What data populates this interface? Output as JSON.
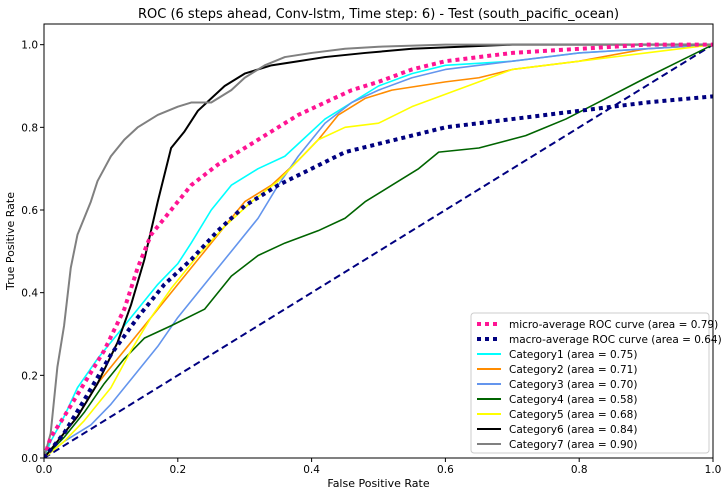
{
  "chart_data": {
    "type": "line",
    "title": "ROC (6 steps ahead, Conv-lstm, Time step: 6) - Test (south_pacific_ocean)",
    "xlabel": "False Positive Rate",
    "ylabel": "True Positive Rate",
    "xlim": [
      0,
      1
    ],
    "ylim": [
      0,
      1.05
    ],
    "x_ticks": [
      "0.0",
      "0.2",
      "0.4",
      "0.6",
      "0.8",
      "1.0"
    ],
    "y_ticks": [
      "0.0",
      "0.2",
      "0.4",
      "0.6",
      "0.8",
      "1.0"
    ],
    "grid": false,
    "legend_position": "lower-right",
    "series": [
      {
        "name": "micro-average ROC curve (area = 0.79)",
        "color": "#ff1493",
        "style": "dotted",
        "width": 4,
        "points": [
          [
            0,
            0
          ],
          [
            0.01,
            0.05
          ],
          [
            0.03,
            0.1
          ],
          [
            0.06,
            0.18
          ],
          [
            0.09,
            0.26
          ],
          [
            0.12,
            0.36
          ],
          [
            0.14,
            0.46
          ],
          [
            0.16,
            0.54
          ],
          [
            0.19,
            0.6
          ],
          [
            0.22,
            0.66
          ],
          [
            0.26,
            0.71
          ],
          [
            0.3,
            0.75
          ],
          [
            0.34,
            0.79
          ],
          [
            0.38,
            0.83
          ],
          [
            0.42,
            0.86
          ],
          [
            0.46,
            0.89
          ],
          [
            0.5,
            0.91
          ],
          [
            0.55,
            0.94
          ],
          [
            0.6,
            0.96
          ],
          [
            0.65,
            0.97
          ],
          [
            0.7,
            0.98
          ],
          [
            0.8,
            0.99
          ],
          [
            0.9,
            1.0
          ],
          [
            1.0,
            1.0
          ]
        ]
      },
      {
        "name": "macro-average ROC curve (area = 0.64)",
        "color": "#000080",
        "style": "dotted",
        "width": 4,
        "points": [
          [
            0,
            0
          ],
          [
            0.03,
            0.06
          ],
          [
            0.06,
            0.14
          ],
          [
            0.1,
            0.25
          ],
          [
            0.14,
            0.34
          ],
          [
            0.18,
            0.42
          ],
          [
            0.22,
            0.48
          ],
          [
            0.26,
            0.55
          ],
          [
            0.3,
            0.61
          ],
          [
            0.35,
            0.66
          ],
          [
            0.4,
            0.7
          ],
          [
            0.45,
            0.74
          ],
          [
            0.5,
            0.76
          ],
          [
            0.55,
            0.78
          ],
          [
            0.6,
            0.8
          ],
          [
            0.65,
            0.81
          ],
          [
            0.7,
            0.82
          ],
          [
            0.8,
            0.84
          ],
          [
            0.9,
            0.86
          ],
          [
            1.0,
            0.875
          ]
        ]
      },
      {
        "name": "Category1 (area = 0.75)",
        "color": "#00ffff",
        "style": "solid",
        "width": 1.6,
        "points": [
          [
            0,
            0
          ],
          [
            0.01,
            0.04
          ],
          [
            0.03,
            0.1
          ],
          [
            0.05,
            0.17
          ],
          [
            0.08,
            0.24
          ],
          [
            0.11,
            0.3
          ],
          [
            0.14,
            0.36
          ],
          [
            0.17,
            0.42
          ],
          [
            0.2,
            0.47
          ],
          [
            0.22,
            0.52
          ],
          [
            0.25,
            0.6
          ],
          [
            0.28,
            0.66
          ],
          [
            0.32,
            0.7
          ],
          [
            0.36,
            0.73
          ],
          [
            0.38,
            0.76
          ],
          [
            0.42,
            0.82
          ],
          [
            0.46,
            0.86
          ],
          [
            0.5,
            0.9
          ],
          [
            0.55,
            0.93
          ],
          [
            0.6,
            0.95
          ],
          [
            0.7,
            0.96
          ],
          [
            0.8,
            0.98
          ],
          [
            0.9,
            0.99
          ],
          [
            1.0,
            1.0
          ]
        ]
      },
      {
        "name": "Category2 (area = 0.71)",
        "color": "#ff8c00",
        "style": "solid",
        "width": 1.6,
        "points": [
          [
            0,
            0
          ],
          [
            0.02,
            0.04
          ],
          [
            0.05,
            0.1
          ],
          [
            0.08,
            0.18
          ],
          [
            0.11,
            0.24
          ],
          [
            0.14,
            0.3
          ],
          [
            0.17,
            0.36
          ],
          [
            0.2,
            0.42
          ],
          [
            0.24,
            0.5
          ],
          [
            0.27,
            0.56
          ],
          [
            0.3,
            0.62
          ],
          [
            0.34,
            0.66
          ],
          [
            0.38,
            0.72
          ],
          [
            0.41,
            0.77
          ],
          [
            0.44,
            0.83
          ],
          [
            0.48,
            0.87
          ],
          [
            0.52,
            0.89
          ],
          [
            0.56,
            0.9
          ],
          [
            0.6,
            0.91
          ],
          [
            0.65,
            0.92
          ],
          [
            0.7,
            0.94
          ],
          [
            0.8,
            0.96
          ],
          [
            0.9,
            0.99
          ],
          [
            1.0,
            1.0
          ]
        ]
      },
      {
        "name": "Category3 (area = 0.70)",
        "color": "#6495ed",
        "style": "solid",
        "width": 1.6,
        "points": [
          [
            0,
            0
          ],
          [
            0.03,
            0.04
          ],
          [
            0.07,
            0.08
          ],
          [
            0.1,
            0.13
          ],
          [
            0.13,
            0.19
          ],
          [
            0.17,
            0.27
          ],
          [
            0.2,
            0.34
          ],
          [
            0.24,
            0.42
          ],
          [
            0.28,
            0.5
          ],
          [
            0.32,
            0.58
          ],
          [
            0.35,
            0.66
          ],
          [
            0.38,
            0.73
          ],
          [
            0.42,
            0.81
          ],
          [
            0.46,
            0.86
          ],
          [
            0.5,
            0.89
          ],
          [
            0.55,
            0.92
          ],
          [
            0.6,
            0.94
          ],
          [
            0.7,
            0.96
          ],
          [
            0.8,
            0.98
          ],
          [
            0.9,
            0.99
          ],
          [
            1.0,
            1.0
          ]
        ]
      },
      {
        "name": "Category4 (area = 0.58)",
        "color": "#006400",
        "style": "solid",
        "width": 1.6,
        "points": [
          [
            0,
            0
          ],
          [
            0.03,
            0.05
          ],
          [
            0.06,
            0.11
          ],
          [
            0.09,
            0.18
          ],
          [
            0.12,
            0.24
          ],
          [
            0.15,
            0.29
          ],
          [
            0.19,
            0.32
          ],
          [
            0.24,
            0.36
          ],
          [
            0.28,
            0.44
          ],
          [
            0.32,
            0.49
          ],
          [
            0.36,
            0.52
          ],
          [
            0.41,
            0.55
          ],
          [
            0.45,
            0.58
          ],
          [
            0.48,
            0.62
          ],
          [
            0.52,
            0.66
          ],
          [
            0.56,
            0.7
          ],
          [
            0.59,
            0.74
          ],
          [
            0.65,
            0.75
          ],
          [
            0.72,
            0.78
          ],
          [
            0.78,
            0.82
          ],
          [
            0.84,
            0.87
          ],
          [
            0.9,
            0.92
          ],
          [
            0.95,
            0.96
          ],
          [
            1.0,
            1.0
          ]
        ]
      },
      {
        "name": "Category5 (area = 0.68)",
        "color": "#ffff00",
        "style": "solid",
        "width": 1.6,
        "points": [
          [
            0,
            0
          ],
          [
            0.03,
            0.04
          ],
          [
            0.06,
            0.09
          ],
          [
            0.1,
            0.17
          ],
          [
            0.13,
            0.26
          ],
          [
            0.16,
            0.34
          ],
          [
            0.19,
            0.41
          ],
          [
            0.23,
            0.49
          ],
          [
            0.27,
            0.56
          ],
          [
            0.31,
            0.62
          ],
          [
            0.35,
            0.67
          ],
          [
            0.38,
            0.72
          ],
          [
            0.41,
            0.77
          ],
          [
            0.45,
            0.8
          ],
          [
            0.5,
            0.81
          ],
          [
            0.55,
            0.85
          ],
          [
            0.6,
            0.88
          ],
          [
            0.65,
            0.91
          ],
          [
            0.7,
            0.94
          ],
          [
            0.8,
            0.96
          ],
          [
            0.9,
            0.98
          ],
          [
            1.0,
            1.0
          ]
        ]
      },
      {
        "name": "Category6 (area = 0.84)",
        "color": "#000000",
        "style": "solid",
        "width": 2,
        "points": [
          [
            0,
            0
          ],
          [
            0.02,
            0.04
          ],
          [
            0.05,
            0.1
          ],
          [
            0.08,
            0.18
          ],
          [
            0.11,
            0.28
          ],
          [
            0.13,
            0.37
          ],
          [
            0.15,
            0.48
          ],
          [
            0.17,
            0.62
          ],
          [
            0.19,
            0.75
          ],
          [
            0.21,
            0.79
          ],
          [
            0.23,
            0.84
          ],
          [
            0.25,
            0.87
          ],
          [
            0.27,
            0.9
          ],
          [
            0.3,
            0.93
          ],
          [
            0.34,
            0.95
          ],
          [
            0.38,
            0.96
          ],
          [
            0.42,
            0.97
          ],
          [
            0.48,
            0.98
          ],
          [
            0.55,
            0.99
          ],
          [
            0.7,
            1.0
          ],
          [
            1.0,
            1.0
          ]
        ]
      },
      {
        "name": "Category7 (area = 0.90)",
        "color": "#808080",
        "style": "solid",
        "width": 2,
        "points": [
          [
            0,
            0
          ],
          [
            0.01,
            0.06
          ],
          [
            0.02,
            0.22
          ],
          [
            0.03,
            0.32
          ],
          [
            0.04,
            0.46
          ],
          [
            0.05,
            0.54
          ],
          [
            0.06,
            0.58
          ],
          [
            0.07,
            0.62
          ],
          [
            0.08,
            0.67
          ],
          [
            0.09,
            0.7
          ],
          [
            0.1,
            0.73
          ],
          [
            0.12,
            0.77
          ],
          [
            0.14,
            0.8
          ],
          [
            0.17,
            0.83
          ],
          [
            0.2,
            0.85
          ],
          [
            0.22,
            0.86
          ],
          [
            0.25,
            0.86
          ],
          [
            0.28,
            0.89
          ],
          [
            0.3,
            0.92
          ],
          [
            0.33,
            0.95
          ],
          [
            0.36,
            0.97
          ],
          [
            0.4,
            0.98
          ],
          [
            0.45,
            0.99
          ],
          [
            0.5,
            0.995
          ],
          [
            0.6,
            1.0
          ],
          [
            1.0,
            1.0
          ]
        ]
      }
    ],
    "reference_line": {
      "color": "#000080",
      "style": "dashed",
      "points": [
        [
          0,
          0
        ],
        [
          1,
          1
        ]
      ]
    }
  }
}
